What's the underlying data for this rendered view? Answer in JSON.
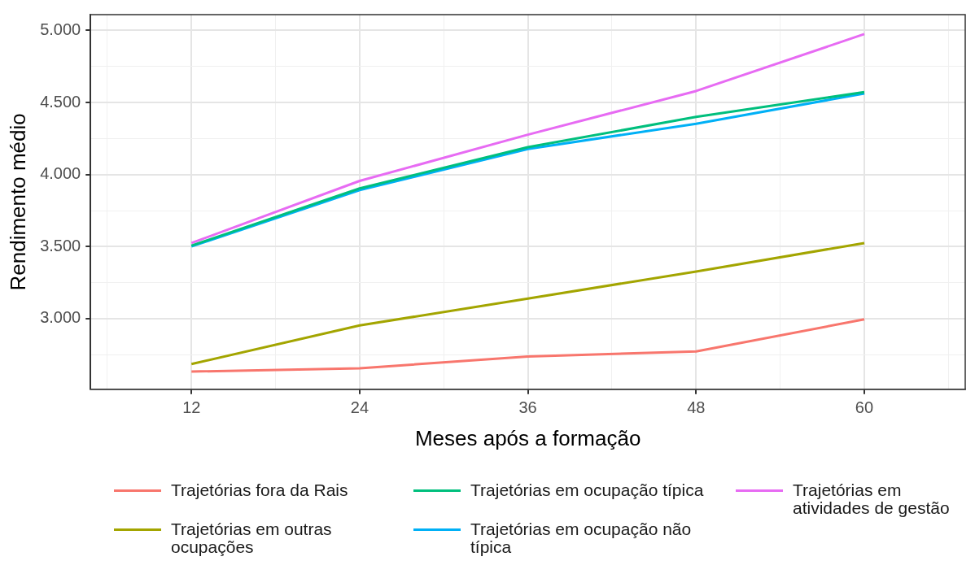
{
  "chart_data": {
    "type": "line",
    "xlabel": "Meses após a formação",
    "ylabel": "Rendimento médio",
    "x": [
      12,
      24,
      36,
      48,
      60
    ],
    "xlim": [
      4.8,
      67.2
    ],
    "xticks": [
      {
        "value": 6,
        "label": null
      },
      12,
      {
        "value": 18,
        "label": null
      },
      24,
      {
        "value": 30,
        "label": null
      },
      36,
      {
        "value": 42,
        "label": null
      },
      48,
      {
        "value": 54,
        "label": null
      },
      60,
      {
        "value": 66,
        "label": null
      }
    ],
    "ylim": [
      2510,
      5110
    ],
    "yticks": [
      {
        "value": 2750,
        "label": null
      },
      {
        "value": 3000,
        "label": "3.000"
      },
      {
        "value": 3250,
        "label": null
      },
      {
        "value": 3500,
        "label": "3.500"
      },
      {
        "value": 3750,
        "label": null
      },
      {
        "value": 4000,
        "label": "4.000"
      },
      {
        "value": 4250,
        "label": null
      },
      {
        "value": 4500,
        "label": "4.500"
      },
      {
        "value": 4750,
        "label": null
      },
      {
        "value": 5000,
        "label": "5.000"
      }
    ],
    "grid": true,
    "legend": "bottom",
    "marker": "none",
    "line_style": "solid",
    "series": [
      {
        "name": "Trajetórias fora da Rais",
        "color": "#f8766d",
        "values": [
          2633,
          2656,
          2738,
          2773,
          2995
        ]
      },
      {
        "name": "Trajetórias em outras ocupações",
        "color": "#a3a500",
        "values": [
          2685,
          2953,
          3140,
          3327,
          3525
        ]
      },
      {
        "name": "Trajetórias em ocupação típica",
        "color": "#00bf7d",
        "values": [
          3507,
          3904,
          4190,
          4400,
          4572
        ]
      },
      {
        "name": "Trajetórias em ocupação não típica",
        "color": "#00b0f6",
        "values": [
          3501,
          3892,
          4178,
          4353,
          4563
        ]
      },
      {
        "name": "Trajetórias em atividades de gestão",
        "color": "#e76bf3",
        "values": [
          3525,
          3956,
          4277,
          4580,
          4975
        ]
      }
    ]
  }
}
